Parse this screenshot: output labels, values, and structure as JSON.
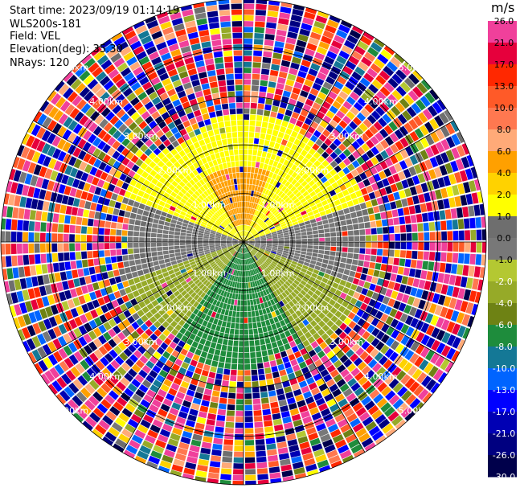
{
  "header": {
    "start_time": "Start time: 2023/09/19 01:14:19",
    "site": "WLS200s-181",
    "field": "Field: VEL",
    "elevation": "Elevation(deg): 35.30",
    "nrays": "NRays: 120"
  },
  "colorbar": {
    "unit": "m/s",
    "ticks": [
      "26.0",
      "21.0",
      "17.0",
      "13.0",
      "10.0",
      "8.0",
      "6.0",
      "4.0",
      "2.0",
      "1.0",
      "0.0",
      "-1.0",
      "-2.0",
      "-4.0",
      "-6.0",
      "-8.0",
      "-10.0",
      "-13.0",
      "-17.0",
      "-21.0",
      "-26.0",
      "-30.0"
    ],
    "bands": [
      {
        "lo": 21.0,
        "hi": 26.0,
        "color": "#f0409b"
      },
      {
        "lo": 17.0,
        "hi": 21.0,
        "color": "#e6003c"
      },
      {
        "lo": 13.0,
        "hi": 17.0,
        "color": "#ff2800"
      },
      {
        "lo": 10.0,
        "hi": 13.0,
        "color": "#ff5a28"
      },
      {
        "lo": 8.0,
        "hi": 10.0,
        "color": "#ff7850"
      },
      {
        "lo": 6.0,
        "hi": 8.0,
        "color": "#ffaa78"
      },
      {
        "lo": 4.0,
        "hi": 6.0,
        "color": "#ffa000"
      },
      {
        "lo": 2.0,
        "hi": 4.0,
        "color": "#ffd200"
      },
      {
        "lo": 1.0,
        "hi": 2.0,
        "color": "#ffff00"
      },
      {
        "lo": 0.0,
        "hi": 1.0,
        "color": "#6e6e6e"
      },
      {
        "lo": -1.0,
        "hi": 0.0,
        "color": "#787878"
      },
      {
        "lo": -2.0,
        "hi": -1.0,
        "color": "#b4c832"
      },
      {
        "lo": -4.0,
        "hi": -2.0,
        "color": "#96aa28"
      },
      {
        "lo": -6.0,
        "hi": -4.0,
        "color": "#6e8214"
      },
      {
        "lo": -8.0,
        "hi": -6.0,
        "color": "#1e8c3c"
      },
      {
        "lo": -10.0,
        "hi": -8.0,
        "color": "#147896"
      },
      {
        "lo": -13.0,
        "hi": -10.0,
        "color": "#0064ff"
      },
      {
        "lo": -17.0,
        "hi": -13.0,
        "color": "#0000ff"
      },
      {
        "lo": -21.0,
        "hi": -17.0,
        "color": "#0000b4"
      },
      {
        "lo": -26.0,
        "hi": -21.0,
        "color": "#000080"
      },
      {
        "lo": -30.0,
        "hi": -26.0,
        "color": "#00004b"
      }
    ]
  },
  "chart_data": {
    "type": "heatmap",
    "subtype": "ppi-polar",
    "field": "VEL",
    "units": "m/s",
    "nrays": 120,
    "range_rings_km": [
      1.0,
      2.0,
      3.0,
      4.0,
      5.0
    ],
    "max_range_km": 5.0,
    "ring_labels": [
      "1.00km",
      "2.00km",
      "3.00km",
      "4.00km",
      "5.00km"
    ],
    "clim": [
      -30.0,
      30.0
    ],
    "grid": true,
    "velocity_regions": [
      {
        "sector": "north-center",
        "range_km": [
          0.3,
          1.6
        ],
        "approx_vel": 5.0
      },
      {
        "sector": "north",
        "range_km": [
          0.0,
          2.6
        ],
        "approx_vel": 1.5
      },
      {
        "sector": "east-west",
        "range_km": [
          0.0,
          2.5
        ],
        "approx_vel": 0.0
      },
      {
        "sector": "south-west",
        "range_km": [
          0.0,
          2.8
        ],
        "approx_vel": -3.0
      },
      {
        "sector": "south",
        "range_km": [
          0.0,
          2.8
        ],
        "approx_vel": -7.0
      },
      {
        "sector": "all",
        "range_km": [
          2.6,
          5.0
        ],
        "approx_vel": "noise"
      }
    ]
  }
}
